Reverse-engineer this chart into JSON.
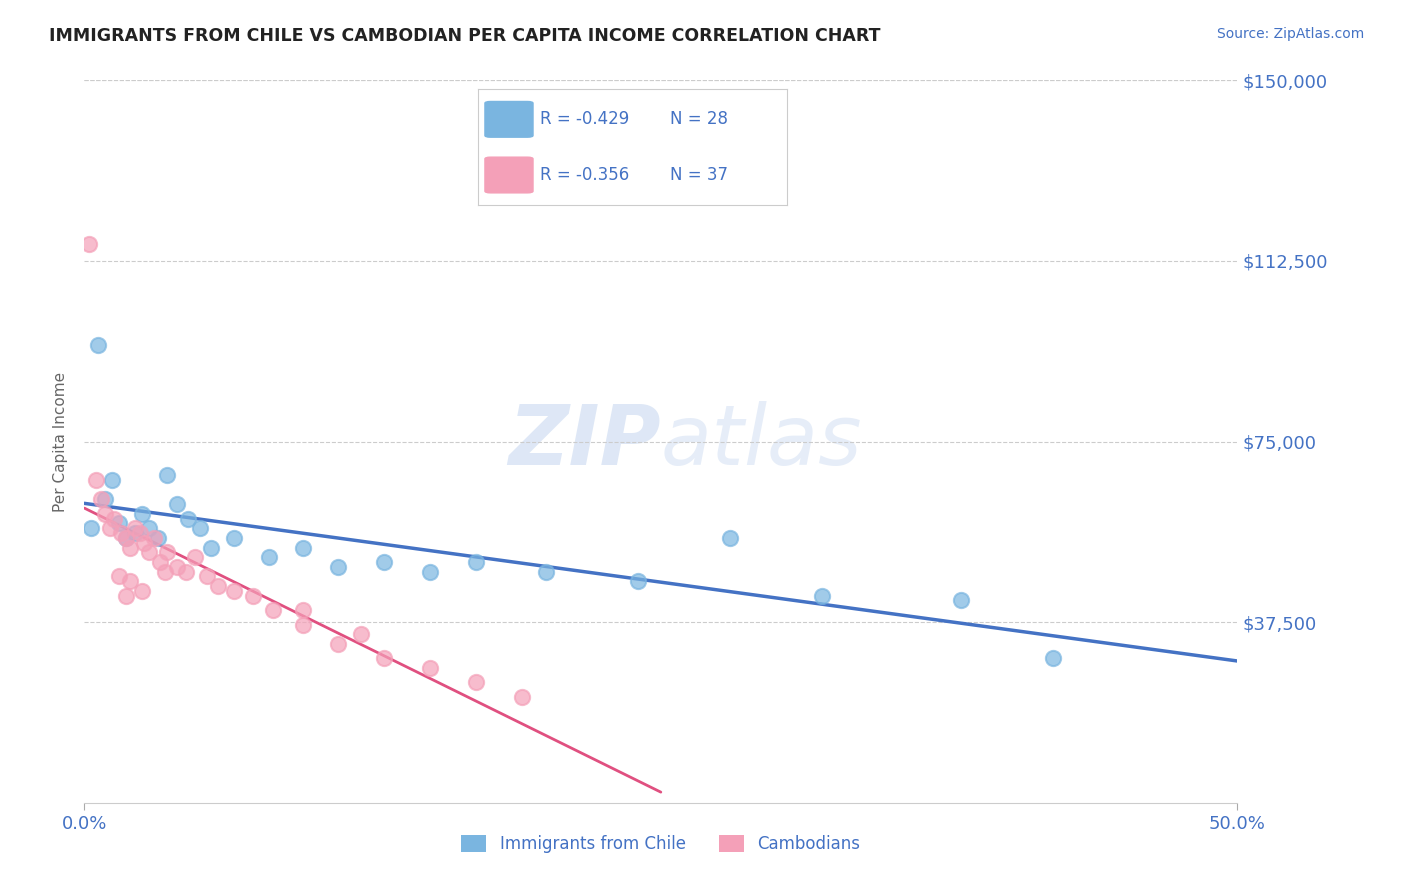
{
  "title": "IMMIGRANTS FROM CHILE VS CAMBODIAN PER CAPITA INCOME CORRELATION CHART",
  "source": "Source: ZipAtlas.com",
  "ylabel": "Per Capita Income",
  "xlim": [
    0.0,
    0.5
  ],
  "ylim": [
    0,
    150000
  ],
  "yticks": [
    0,
    37500,
    75000,
    112500,
    150000
  ],
  "ytick_labels": [
    "",
    "$37,500",
    "$75,000",
    "$112,500",
    "$150,000"
  ],
  "legend_label1": "Immigrants from Chile",
  "legend_label2": "Cambodians",
  "r1": -0.429,
  "n1": 28,
  "r2": -0.356,
  "n2": 37,
  "blue_color": "#7ab5e0",
  "pink_color": "#f4a0b8",
  "blue_line_color": "#4472c4",
  "pink_line_color": "#e05080",
  "title_color": "#222222",
  "axis_color": "#4472c4",
  "watermark_color": "#c8d8f0",
  "blue_scatter_x": [
    0.003,
    0.006,
    0.009,
    0.012,
    0.015,
    0.018,
    0.022,
    0.025,
    0.028,
    0.032,
    0.036,
    0.04,
    0.045,
    0.05,
    0.055,
    0.065,
    0.08,
    0.095,
    0.11,
    0.13,
    0.15,
    0.17,
    0.2,
    0.24,
    0.28,
    0.32,
    0.38,
    0.42
  ],
  "blue_scatter_y": [
    57000,
    95000,
    63000,
    67000,
    58000,
    55000,
    56000,
    60000,
    57000,
    55000,
    68000,
    62000,
    59000,
    57000,
    53000,
    55000,
    51000,
    53000,
    49000,
    50000,
    48000,
    50000,
    48000,
    46000,
    55000,
    43000,
    42000,
    30000
  ],
  "pink_scatter_x": [
    0.002,
    0.005,
    0.007,
    0.009,
    0.011,
    0.013,
    0.016,
    0.018,
    0.02,
    0.022,
    0.024,
    0.026,
    0.028,
    0.03,
    0.033,
    0.036,
    0.04,
    0.044,
    0.048,
    0.053,
    0.058,
    0.065,
    0.073,
    0.082,
    0.095,
    0.11,
    0.13,
    0.15,
    0.17,
    0.19,
    0.095,
    0.12,
    0.035,
    0.025,
    0.02,
    0.015,
    0.018
  ],
  "pink_scatter_y": [
    116000,
    67000,
    63000,
    60000,
    57000,
    59000,
    56000,
    55000,
    53000,
    57000,
    56000,
    54000,
    52000,
    55000,
    50000,
    52000,
    49000,
    48000,
    51000,
    47000,
    45000,
    44000,
    43000,
    40000,
    37000,
    33000,
    30000,
    28000,
    25000,
    22000,
    40000,
    35000,
    48000,
    44000,
    46000,
    47000,
    43000
  ]
}
